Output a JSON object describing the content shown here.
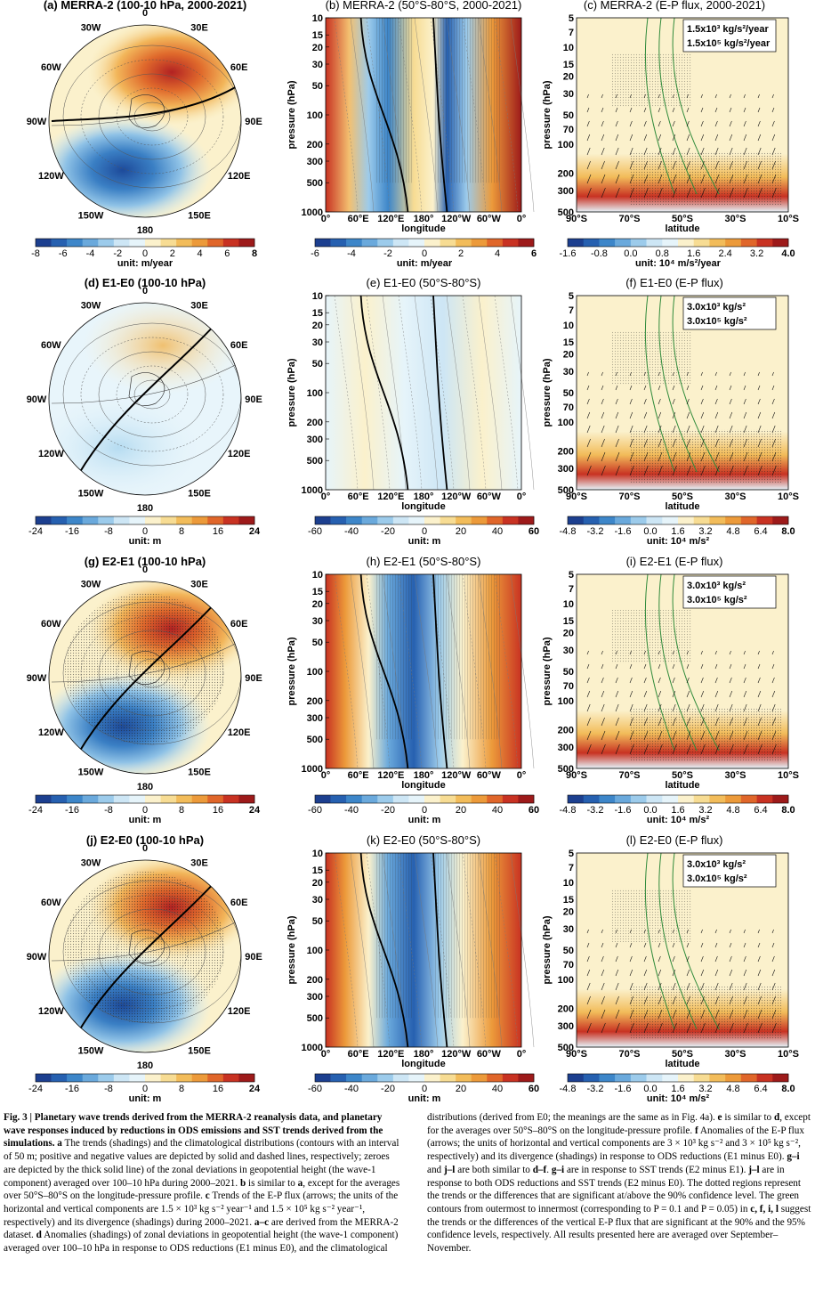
{
  "rows": [
    {
      "map": {
        "title": "(a) MERRA-2 (100-10 hPa, 2000-2021)",
        "bold": true,
        "pattern": "trend",
        "cb_ticks": [
          "-8",
          "-6",
          "-4",
          "-2",
          "0",
          "2",
          "4",
          "6",
          "8"
        ],
        "cb_unit": "unit: m/year"
      },
      "section": {
        "title": "(b) MERRA-2 (50°S-80°S, 2000-2021)",
        "cb_ticks": [
          "-6",
          "-4",
          "-2",
          "0",
          "2",
          "4",
          "6"
        ],
        "cb_unit": "unit: m/year"
      },
      "ep": {
        "title": "(c) MERRA-2 (E-P flux, 2000-2021)",
        "legend": [
          "1.5x10³ kg/s²/year",
          "1.5x10⁵ kg/s²/year"
        ],
        "cb_ticks": [
          "-1.6",
          "-0.8",
          "0.0",
          "0.8",
          "1.6",
          "2.4",
          "3.2",
          "4.0"
        ],
        "cb_unit": "unit: 10⁴ m/s²/year"
      }
    },
    {
      "map": {
        "title": "(d) E1-E0 (100-10 hPa)",
        "bold": true,
        "pattern": "weak",
        "cb_ticks": [
          "-24",
          "-16",
          "-8",
          "0",
          "8",
          "16",
          "24"
        ],
        "cb_unit": "unit: m"
      },
      "section": {
        "title": "(e) E1-E0 (50°S-80°S)",
        "cb_ticks": [
          "-60",
          "-40",
          "-20",
          "0",
          "20",
          "40",
          "60"
        ],
        "cb_unit": "unit: m"
      },
      "ep": {
        "title": "(f) E1-E0 (E-P flux)",
        "legend": [
          "3.0x10³ kg/s²",
          "3.0x10⁵ kg/s²"
        ],
        "cb_ticks": [
          "-4.8",
          "-3.2",
          "-1.6",
          "0.0",
          "1.6",
          "3.2",
          "4.8",
          "6.4",
          "8.0"
        ],
        "cb_unit": "unit: 10⁴ m/s²"
      }
    },
    {
      "map": {
        "title": "(g) E2-E1 (100-10 hPa)",
        "bold": true,
        "pattern": "strong",
        "cb_ticks": [
          "-24",
          "-16",
          "-8",
          "0",
          "8",
          "16",
          "24"
        ],
        "cb_unit": "unit: m"
      },
      "section": {
        "title": "(h) E2-E1 (50°S-80°S)",
        "cb_ticks": [
          "-60",
          "-40",
          "-20",
          "0",
          "20",
          "40",
          "60"
        ],
        "cb_unit": "unit: m"
      },
      "ep": {
        "title": "(i) E2-E1 (E-P flux)",
        "legend": [
          "3.0x10³ kg/s²",
          "3.0x10⁵ kg/s²"
        ],
        "cb_ticks": [
          "-4.8",
          "-3.2",
          "-1.6",
          "0.0",
          "1.6",
          "3.2",
          "4.8",
          "6.4",
          "8.0"
        ],
        "cb_unit": "unit: 10⁴ m/s²"
      }
    },
    {
      "map": {
        "title": "(j) E2-E0 (100-10 hPa)",
        "bold": true,
        "pattern": "strong",
        "cb_ticks": [
          "-24",
          "-16",
          "-8",
          "0",
          "8",
          "16",
          "24"
        ],
        "cb_unit": "unit: m"
      },
      "section": {
        "title": "(k) E2-E0 (50°S-80°S)",
        "cb_ticks": [
          "-60",
          "-40",
          "-20",
          "0",
          "20",
          "40",
          "60"
        ],
        "cb_unit": "unit: m"
      },
      "ep": {
        "title": "(l) E2-E0 (E-P flux)",
        "legend": [
          "3.0x10³ kg/s²",
          "3.0x10⁵ kg/s²"
        ],
        "cb_ticks": [
          "-4.8",
          "-3.2",
          "-1.6",
          "0.0",
          "1.6",
          "3.2",
          "4.8",
          "6.4",
          "8.0"
        ],
        "cb_unit": "unit: 10⁴ m/s²"
      }
    }
  ],
  "map_labels": [
    "0",
    "30E",
    "60E",
    "90E",
    "120E",
    "150E",
    "180",
    "150W",
    "120W",
    "90W",
    "60W",
    "30W"
  ],
  "section_axes": {
    "ylabel": "pressure (hPa)",
    "yticks": [
      "10",
      "15",
      "20",
      "30",
      "50",
      "100",
      "200",
      "300",
      "500",
      "1000"
    ],
    "xticks": [
      "0°",
      "60°E",
      "120°E",
      "180°",
      "120°W",
      "60°W",
      "0°"
    ],
    "xlabel": "longitude"
  },
  "ep_axes": {
    "ylabel": "pressure (hPa)",
    "yticks": [
      "5",
      "7",
      "10",
      "15",
      "20",
      "30",
      "50",
      "70",
      "100",
      "200",
      "300",
      "500"
    ],
    "xticks": [
      "90°S",
      "70°S",
      "50°S",
      "30°S",
      "10°S"
    ],
    "xlabel": "latitude"
  },
  "colors": {
    "neg": [
      "#1c3f8f",
      "#2660b0",
      "#3d86c9",
      "#6aa9dc",
      "#9ccbeb",
      "#cde6f5",
      "#e6f4fa"
    ],
    "pos": [
      "#fbf1cc",
      "#f7dc93",
      "#f2bc5a",
      "#ec9a3a",
      "#e0662a",
      "#c83222",
      "#9d1a1a"
    ],
    "ep_contour": "#2f8a3a"
  },
  "caption": {
    "left": [
      {
        "b": "Fig. 3 | Planetary wave trends derived from the MERRA-2 reanalysis data, and planetary wave responses induced by reductions in ODS emissions and SST trends derived from the simulations. a",
        "t": " The trends (shadings) and the climatological distributions (contours with an interval of 50 m; positive and negative values are depicted by solid and dashed lines, respectively; zeroes are depicted by the thick solid line) of the zonal deviations in geopotential height (the wave-1 component) averaged over 100–10 hPa during 2000–2021. "
      },
      {
        "b": "b",
        "t": " is similar to "
      },
      {
        "b": "a",
        "t": ", except for the averages over 50°S–80°S on the longitude-pressure profile. "
      },
      {
        "b": "c",
        "t": " Trends of the E-P flux (arrows; the units of the horizontal and vertical components are 1.5 × 10³ kg s⁻² year⁻¹ and 1.5 × 10⁵ kg s⁻² year⁻¹, respectively) and its divergence (shadings) during 2000–2021. "
      },
      {
        "b": "a–c",
        "t": " are derived from the MERRA-2 dataset. "
      },
      {
        "b": "d",
        "t": " Anomalies (shadings) of zonal deviations in geopotential height (the wave-1 component) averaged over 100–10 hPa in response to ODS reductions (E1 minus E0), and the climatological"
      }
    ],
    "right": [
      {
        "b": "",
        "t": "distributions (derived from E0; the meanings are the same as in Fig. 4a). "
      },
      {
        "b": "e",
        "t": " is similar to "
      },
      {
        "b": "d",
        "t": ", except for the averages over 50°S–80°S on the longitude-pressure profile. "
      },
      {
        "b": "f",
        "t": " Anomalies of the E-P flux (arrows; the units of horizontal and vertical components are 3 × 10³ kg s⁻² and 3 × 10⁵ kg s⁻², respectively) and its divergence (shadings) in response to ODS reductions (E1 minus E0). "
      },
      {
        "b": "g–i",
        "t": " and "
      },
      {
        "b": "j–l",
        "t": " are both similar to "
      },
      {
        "b": "d–f",
        "t": ". "
      },
      {
        "b": "g–i",
        "t": " are in response to SST trends (E2 minus E1). "
      },
      {
        "b": "j–l",
        "t": " are in response to both ODS reductions and SST trends (E2 minus E0). The dotted regions represent the trends or the differences that are significant at/above the 90% confidence level. The green contours from outermost to innermost (corresponding to P = 0.1 and P = 0.05) in "
      },
      {
        "b": "c, f, i, l",
        "t": " suggest the trends or the differences of the vertical E-P flux that are significant at the 90% and the 95% confidence levels, respectively. All results presented here are averaged over September–November."
      }
    ]
  }
}
